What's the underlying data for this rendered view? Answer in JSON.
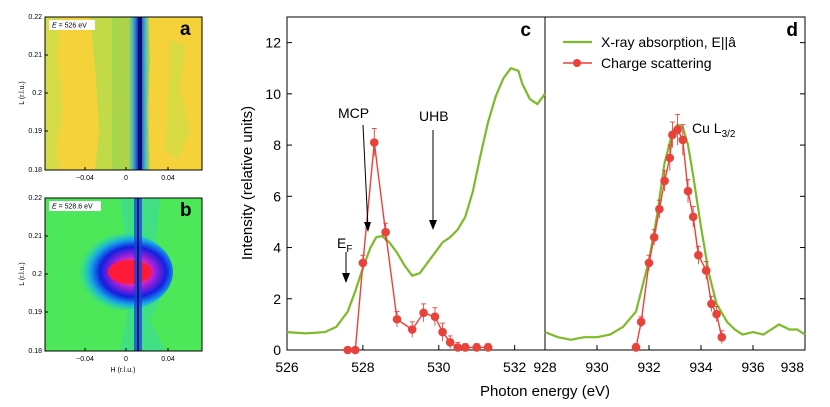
{
  "colors": {
    "absorption": "#7dba27",
    "scattering": "#e8423a",
    "errorbar": "#e8423a"
  },
  "maps": [
    {
      "panel": "a",
      "energy_label_prefix": "E",
      "energy_label_value": " = 526 eV",
      "ylabel": "L (r.l.u.)",
      "yticks": [
        "0.22",
        "0.21",
        "0.2",
        "0.19",
        "0.18"
      ],
      "xticks": [
        "−0.04",
        "0",
        "0.04"
      ],
      "xlabel": ""
    },
    {
      "panel": "b",
      "energy_label_prefix": "E",
      "energy_label_value": " = 528.6 eV",
      "ylabel": "L (r.l.u.)",
      "yticks": [
        "0.22",
        "0.21",
        "0.2",
        "0.19",
        "0.18"
      ],
      "xticks": [
        "−0.04",
        "0",
        "0.04"
      ],
      "xlabel": "H (r.l.u.)"
    }
  ],
  "chart_data": {
    "type": "line",
    "ylabel": "Intensity (relative units)",
    "xlabel": "Photon energy (eV)",
    "ylim": [
      0,
      13
    ],
    "yticks": [
      0,
      2,
      4,
      6,
      8,
      10,
      12
    ],
    "legend": [
      "X-ray absorption, E||â",
      "Charge scattering"
    ],
    "panels": [
      {
        "panel": "c",
        "xlim": [
          526,
          532.8
        ],
        "xticks": [
          526,
          528,
          530,
          532
        ],
        "absorption": {
          "x": [
            526.0,
            526.5,
            527.0,
            527.3,
            527.6,
            527.8,
            528.0,
            528.2,
            528.35,
            528.5,
            528.7,
            528.9,
            529.1,
            529.3,
            529.5,
            529.7,
            529.9,
            530.1,
            530.3,
            530.5,
            530.7,
            530.9,
            531.1,
            531.3,
            531.5,
            531.7,
            531.9,
            532.1,
            532.2,
            532.4,
            532.6,
            532.8
          ],
          "y": [
            0.7,
            0.65,
            0.7,
            0.9,
            1.5,
            2.3,
            3.2,
            4.0,
            4.4,
            4.45,
            4.2,
            3.8,
            3.3,
            2.9,
            3.0,
            3.4,
            3.8,
            4.2,
            4.4,
            4.7,
            5.2,
            6.2,
            7.6,
            8.9,
            9.9,
            10.6,
            11.0,
            10.9,
            10.4,
            9.8,
            9.6,
            10.0
          ]
        },
        "scattering": {
          "x": [
            527.6,
            527.8,
            528.0,
            528.3,
            528.6,
            528.9,
            529.3,
            529.6,
            529.9,
            530.1,
            530.3,
            530.5,
            530.7,
            531.0,
            531.3
          ],
          "y": [
            0.0,
            0.0,
            3.4,
            8.1,
            4.6,
            1.2,
            0.8,
            1.45,
            1.3,
            0.7,
            0.3,
            0.1,
            0.1,
            0.1,
            0.1
          ],
          "err": [
            0.1,
            0.1,
            0.3,
            0.55,
            0.35,
            0.3,
            0.3,
            0.35,
            0.35,
            0.35,
            0.25,
            0.2,
            0.15,
            0.15,
            0.15
          ]
        },
        "annotations": [
          {
            "text": "MCP",
            "x": 528.0,
            "y": 11.8
          },
          {
            "text": "UHB",
            "x": 530.6,
            "y": 11.4
          },
          {
            "text": "E",
            "sub": "F",
            "x": 527.2,
            "y": 5.3
          }
        ]
      },
      {
        "panel": "d",
        "xlim": [
          928,
          938
        ],
        "xticks": [
          928,
          930,
          932,
          934,
          936,
          938
        ],
        "absorption": {
          "x": [
            928.0,
            928.5,
            929.0,
            929.5,
            930.0,
            930.5,
            931.0,
            931.5,
            932.0,
            932.3,
            932.6,
            932.9,
            933.1,
            933.3,
            933.5,
            933.7,
            934.0,
            934.3,
            934.6,
            935.0,
            935.3,
            935.6,
            936.0,
            936.4,
            936.7,
            937.0,
            937.4,
            937.7,
            938.0
          ],
          "y": [
            0.7,
            0.5,
            0.4,
            0.5,
            0.5,
            0.6,
            0.9,
            1.5,
            3.5,
            5.2,
            7.3,
            8.5,
            8.8,
            8.7,
            8.0,
            6.8,
            4.8,
            3.0,
            1.8,
            1.1,
            0.8,
            0.6,
            0.7,
            0.6,
            0.8,
            1.0,
            0.8,
            0.8,
            0.6
          ]
        },
        "scattering": {
          "x": [
            931.5,
            931.7,
            932.0,
            932.2,
            932.4,
            932.6,
            932.8,
            932.9,
            933.1,
            933.3,
            933.5,
            933.7,
            933.9,
            934.2,
            934.4,
            934.6,
            934.8
          ],
          "y": [
            0.1,
            1.1,
            3.4,
            4.4,
            5.5,
            6.6,
            7.5,
            8.4,
            8.6,
            8.2,
            6.2,
            5.2,
            3.7,
            3.1,
            1.8,
            1.4,
            0.5
          ],
          "err": [
            0.15,
            0.2,
            0.3,
            0.3,
            0.35,
            0.4,
            0.5,
            0.5,
            0.6,
            0.6,
            0.45,
            0.4,
            0.35,
            0.35,
            0.3,
            0.3,
            0.25
          ]
        },
        "annotations": [
          {
            "text": "Cu L",
            "sub": "3/2",
            "x": 934.0,
            "y": 8.4
          }
        ]
      }
    ]
  }
}
